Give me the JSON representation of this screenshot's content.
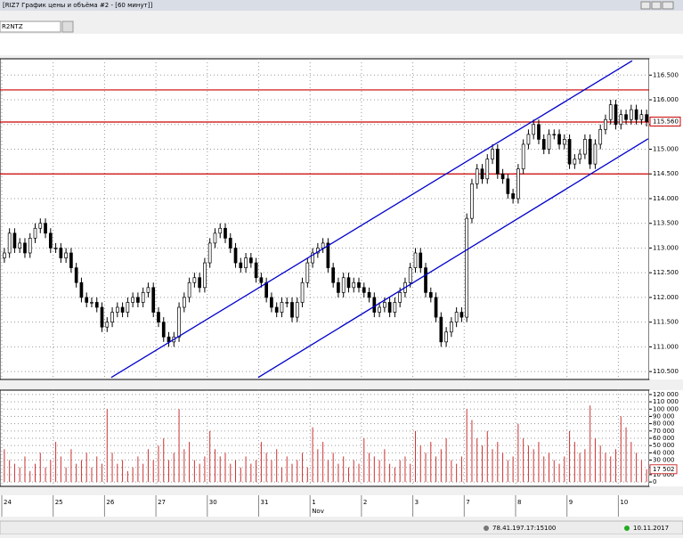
{
  "window": {
    "title": "[RIZ7 График цены и объёма #2 - [60 минут]]",
    "symbol": "R2NTZ"
  },
  "chart_data": [
    {
      "type": "candlestick",
      "open": [
        112.8,
        112.9,
        113.3,
        113.0,
        113.1,
        112.9,
        113.2,
        113.4,
        113.5,
        113.3,
        113.0,
        113.0,
        112.8,
        112.9,
        112.6,
        112.3,
        112.0,
        111.9,
        111.9,
        111.8,
        111.4,
        111.5,
        111.7,
        111.8,
        111.7,
        111.9,
        112.0,
        111.9,
        112.1,
        112.2,
        111.7,
        111.5,
        111.2,
        111.1,
        111.2,
        111.8,
        112.0,
        112.3,
        112.4,
        112.2,
        112.7,
        113.1,
        113.3,
        113.4,
        113.2,
        113.0,
        112.7,
        112.6,
        112.8,
        112.7,
        112.4,
        112.3,
        112.0,
        111.8,
        111.7,
        111.9,
        111.9,
        111.6,
        111.9,
        112.3,
        112.7,
        112.9,
        113.0,
        113.1,
        112.6,
        112.3,
        112.1,
        112.4,
        112.2,
        112.3,
        112.2,
        112.1,
        112.0,
        111.7,
        111.8,
        111.9,
        111.7,
        111.9,
        112.1,
        112.3,
        112.6,
        112.9,
        112.6,
        112.1,
        112.0,
        111.6,
        111.1,
        111.3,
        111.5,
        111.7,
        111.6,
        113.6,
        114.3,
        114.6,
        114.4,
        114.8,
        115.0,
        114.5,
        114.4,
        114.1,
        114.0,
        114.6,
        115.1,
        115.3,
        115.5,
        115.2,
        115.0,
        115.3,
        115.3,
        115.1,
        115.2,
        114.7,
        114.8,
        114.9,
        115.2,
        114.7,
        115.1,
        115.4,
        115.6,
        115.9,
        115.5,
        115.7,
        115.6,
        115.8,
        115.6,
        115.7
      ],
      "high": [
        113.0,
        113.4,
        113.4,
        113.2,
        113.2,
        113.3,
        113.5,
        113.6,
        113.6,
        113.4,
        113.1,
        113.1,
        113.0,
        113.0,
        112.7,
        112.4,
        112.1,
        112.0,
        112.0,
        111.9,
        111.6,
        111.8,
        111.9,
        111.9,
        112.0,
        112.1,
        112.1,
        112.2,
        112.3,
        112.3,
        111.8,
        111.6,
        111.3,
        111.3,
        111.9,
        112.1,
        112.4,
        112.5,
        112.5,
        112.8,
        113.2,
        113.4,
        113.5,
        113.5,
        113.3,
        113.1,
        112.8,
        112.9,
        112.9,
        112.8,
        112.5,
        112.4,
        112.1,
        111.9,
        112.0,
        112.0,
        112.0,
        112.0,
        112.4,
        112.8,
        113.0,
        113.1,
        113.2,
        113.2,
        112.7,
        112.4,
        112.5,
        112.5,
        112.4,
        112.4,
        112.3,
        112.2,
        112.1,
        111.9,
        112.0,
        112.0,
        112.0,
        112.2,
        112.4,
        112.7,
        113.0,
        113.0,
        112.7,
        112.2,
        112.1,
        111.7,
        111.4,
        111.6,
        111.8,
        111.8,
        113.7,
        114.4,
        114.7,
        114.7,
        114.9,
        115.1,
        115.1,
        114.6,
        114.5,
        114.2,
        114.7,
        115.2,
        115.4,
        115.6,
        115.6,
        115.3,
        115.4,
        115.4,
        115.4,
        115.3,
        115.3,
        114.9,
        115.0,
        115.3,
        115.3,
        115.2,
        115.5,
        115.7,
        116.0,
        116.0,
        115.8,
        115.8,
        115.9,
        115.9,
        115.8,
        115.8
      ],
      "low": [
        112.7,
        112.8,
        112.9,
        112.9,
        112.8,
        112.8,
        113.1,
        113.3,
        113.2,
        112.9,
        112.9,
        112.7,
        112.7,
        112.5,
        112.2,
        111.9,
        111.8,
        111.8,
        111.7,
        111.3,
        111.3,
        111.4,
        111.6,
        111.6,
        111.6,
        111.8,
        111.8,
        111.8,
        112.0,
        111.6,
        111.4,
        111.1,
        111.0,
        111.0,
        111.1,
        111.7,
        111.9,
        112.2,
        112.1,
        112.1,
        112.6,
        113.0,
        113.2,
        113.1,
        112.9,
        112.6,
        112.5,
        112.5,
        112.6,
        112.3,
        112.2,
        111.9,
        111.7,
        111.6,
        111.6,
        111.8,
        111.5,
        111.5,
        111.8,
        112.2,
        112.6,
        112.8,
        112.9,
        112.5,
        112.2,
        112.0,
        112.0,
        112.1,
        112.1,
        112.1,
        112.0,
        111.9,
        111.6,
        111.6,
        111.7,
        111.6,
        111.6,
        111.8,
        112.0,
        112.2,
        112.5,
        112.5,
        112.0,
        111.9,
        111.5,
        111.0,
        111.0,
        111.2,
        111.4,
        111.5,
        111.5,
        113.5,
        114.2,
        114.3,
        114.3,
        114.7,
        114.4,
        114.3,
        114.0,
        113.9,
        113.9,
        114.5,
        115.0,
        115.2,
        115.1,
        114.9,
        114.9,
        115.2,
        115.0,
        115.0,
        114.6,
        114.6,
        114.7,
        114.8,
        114.6,
        114.6,
        115.0,
        115.3,
        115.5,
        115.4,
        115.4,
        115.5,
        115.5,
        115.5,
        115.5,
        115.46
      ],
      "close": [
        112.9,
        113.3,
        113.0,
        113.1,
        112.9,
        113.2,
        113.4,
        113.5,
        113.3,
        113.0,
        113.0,
        112.8,
        112.9,
        112.6,
        112.3,
        112.0,
        111.9,
        111.9,
        111.8,
        111.4,
        111.5,
        111.7,
        111.8,
        111.7,
        111.9,
        112.0,
        111.9,
        112.1,
        112.2,
        111.7,
        111.5,
        111.2,
        111.1,
        111.2,
        111.8,
        112.0,
        112.3,
        112.4,
        112.2,
        112.7,
        113.1,
        113.3,
        113.4,
        113.2,
        113.0,
        112.7,
        112.6,
        112.8,
        112.7,
        112.4,
        112.3,
        112.0,
        111.8,
        111.7,
        111.9,
        111.9,
        111.6,
        111.9,
        112.3,
        112.7,
        112.9,
        113.0,
        113.1,
        112.6,
        112.3,
        112.1,
        112.4,
        112.2,
        112.3,
        112.2,
        112.1,
        112.0,
        111.7,
        111.8,
        111.9,
        111.7,
        111.9,
        112.1,
        112.3,
        112.6,
        112.9,
        112.6,
        112.1,
        112.0,
        111.6,
        111.1,
        111.3,
        111.5,
        111.7,
        111.6,
        113.6,
        114.3,
        114.6,
        114.4,
        114.8,
        115.0,
        114.5,
        114.4,
        114.1,
        114.0,
        114.6,
        115.1,
        115.3,
        115.5,
        115.2,
        115.0,
        115.3,
        115.3,
        115.1,
        115.2,
        114.7,
        114.8,
        114.9,
        115.2,
        114.7,
        115.1,
        115.4,
        115.6,
        115.9,
        115.5,
        115.7,
        115.6,
        115.8,
        115.6,
        115.7,
        115.56
      ],
      "last_value_label": "115.560",
      "color_up": "#ffffff",
      "color_down": "#000000",
      "ylim": [
        110.34,
        116.83
      ],
      "yticks": [
        {
          "value": 110.5,
          "label": "110.500"
        },
        {
          "value": 111,
          "label": "111.000"
        },
        {
          "value": 111.5,
          "label": "111.500"
        },
        {
          "value": 112,
          "label": "112.000"
        },
        {
          "value": 112.5,
          "label": "112.500"
        },
        {
          "value": 113,
          "label": "113.000"
        },
        {
          "value": 113.5,
          "label": "113.500"
        },
        {
          "value": 114,
          "label": "114.000"
        },
        {
          "value": 114.5,
          "label": "114.500"
        },
        {
          "value": 115,
          "label": "115.000"
        },
        {
          "value": 115.5,
          "label": "115.500"
        },
        {
          "value": 116,
          "label": "116.000"
        },
        {
          "value": 116.5,
          "label": "116.500"
        }
      ],
      "levels": [
        116.2,
        115.55,
        114.5
      ],
      "level_color": "#cc0000",
      "trend_lines": [
        {
          "x": [
            20.8,
            122.2
          ],
          "y": [
            110.38,
            116.79
          ]
        },
        {
          "x": [
            49.4,
            125.3
          ],
          "y": [
            110.38,
            115.21
          ]
        }
      ],
      "trend_color": "#0000cc",
      "x_labels": [
        "24",
        "25",
        "26",
        "27",
        "30",
        "31",
        "1",
        "2",
        "3",
        "7",
        "8",
        "9",
        "10"
      ],
      "month_label": "Nov",
      "grid": true
    },
    {
      "type": "bar",
      "values": [
        45000,
        30000,
        25000,
        20000,
        35000,
        15000,
        25000,
        40000,
        20000,
        30000,
        55000,
        35000,
        20000,
        45000,
        25000,
        30000,
        40000,
        20000,
        35000,
        25000,
        100000,
        40000,
        25000,
        30000,
        15000,
        20000,
        35000,
        25000,
        45000,
        30000,
        50000,
        60000,
        30000,
        40000,
        100000,
        45000,
        55000,
        30000,
        25000,
        35000,
        70000,
        45000,
        35000,
        40000,
        25000,
        30000,
        20000,
        35000,
        25000,
        30000,
        55000,
        40000,
        30000,
        45000,
        20000,
        35000,
        25000,
        30000,
        40000,
        20000,
        75000,
        45000,
        55000,
        30000,
        40000,
        25000,
        35000,
        20000,
        30000,
        25000,
        60000,
        40000,
        35000,
        30000,
        45000,
        25000,
        20000,
        30000,
        35000,
        25000,
        70000,
        50000,
        40000,
        55000,
        35000,
        45000,
        60000,
        30000,
        25000,
        35000,
        100000,
        85000,
        60000,
        50000,
        70000,
        45000,
        55000,
        40000,
        30000,
        35000,
        80000,
        60000,
        50000,
        45000,
        55000,
        35000,
        40000,
        30000,
        25000,
        35000,
        70000,
        55000,
        40000,
        45000,
        105000,
        60000,
        50000,
        40000,
        35000,
        45000,
        90000,
        75000,
        55000,
        40000,
        30000,
        17502
      ],
      "last_value_label": "17 502",
      "color": "#cc3333",
      "ylim": [
        -6000,
        126000
      ],
      "yticks": [
        0,
        {
          "value": 10000,
          "label": "10 000"
        },
        {
          "value": 20000,
          "label": "20 000"
        },
        {
          "value": 30000,
          "label": "30 000"
        },
        {
          "value": 40000,
          "label": "40 000"
        },
        {
          "value": 50000,
          "label": "50 000"
        },
        {
          "value": 60000,
          "label": "60 000"
        },
        {
          "value": 70000,
          "label": "70 000"
        },
        {
          "value": 80000,
          "label": "80 000"
        },
        {
          "value": 90000,
          "label": "90 000"
        },
        {
          "value": 100000,
          "label": "100 000"
        },
        {
          "value": 110000,
          "label": "110 000"
        },
        {
          "value": 120000,
          "label": "120 000"
        }
      ],
      "grid": true
    }
  ],
  "status": {
    "server": "78.41.197.17:15100",
    "date": "10.11.2017"
  }
}
